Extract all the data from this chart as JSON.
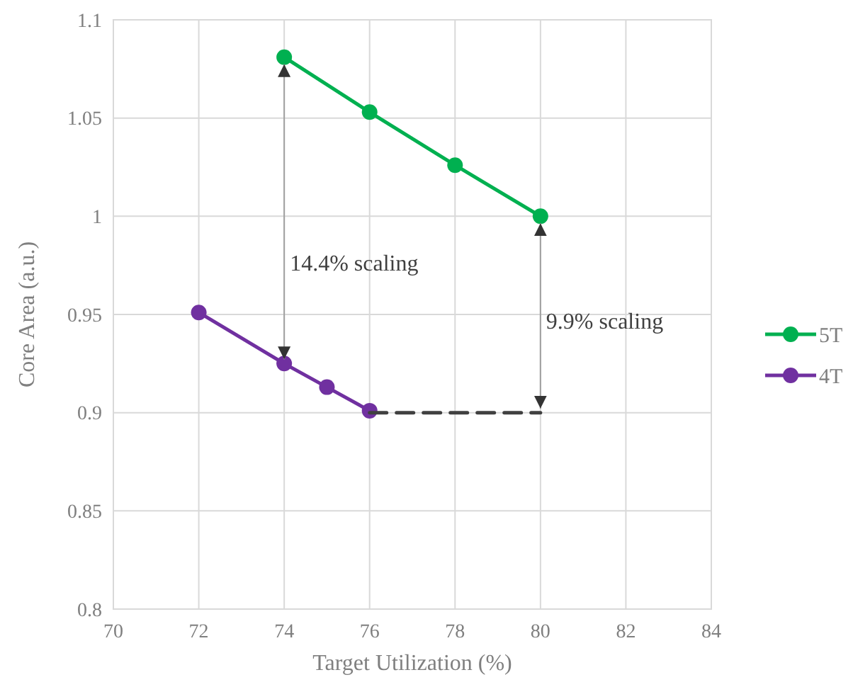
{
  "chart_data": {
    "type": "line",
    "xlabel": "Target Utilization (%)",
    "ylabel": "Core Area (a.u.)",
    "xlim": [
      70,
      84
    ],
    "xticks": [
      70,
      72,
      74,
      76,
      78,
      80,
      82,
      84
    ],
    "ylim": [
      0.8,
      1.1
    ],
    "yticks": [
      {
        "value": 0.8,
        "label": "0.8"
      },
      {
        "value": 0.85,
        "label": "0.85"
      },
      {
        "value": 0.9,
        "label": "0.9"
      },
      {
        "value": 0.95,
        "label": "0.95"
      },
      {
        "value": 1,
        "label": "1"
      },
      {
        "value": 1.05,
        "label": "1.05"
      },
      {
        "value": 1.1,
        "label": "1.1"
      }
    ],
    "grid": true,
    "legend": "right",
    "marker": "circle",
    "line_style": "solid",
    "series": [
      {
        "name": "5T",
        "color": "#00b050",
        "x": [
          74,
          76,
          78,
          80
        ],
        "values": [
          1.081,
          1.053,
          1.026,
          1.0
        ]
      },
      {
        "name": "4T",
        "color": "#7030a0",
        "x": [
          72,
          74,
          75,
          76
        ],
        "values": [
          0.951,
          0.925,
          0.913,
          0.901
        ]
      },
      {
        "color": "#404040",
        "x": [
          76,
          80
        ],
        "values": [
          0.9,
          0.9
        ],
        "line_style": "dashed",
        "marker": "none"
      }
    ],
    "annotations": [
      "14.4% scaling",
      "9.9% scaling"
    ]
  }
}
